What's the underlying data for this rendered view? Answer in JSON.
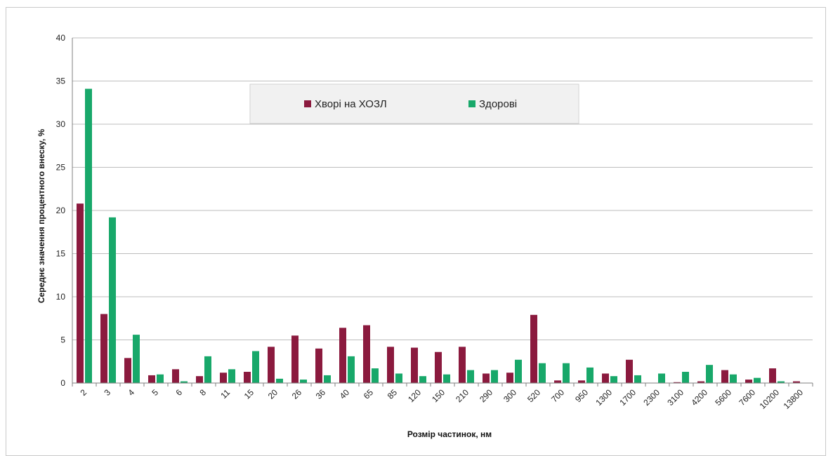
{
  "chart_data": {
    "type": "bar",
    "title": "",
    "xlabel": "Розмір частинок, нм",
    "ylabel": "Середнє значення процентного внеску, %",
    "ylim": [
      0,
      40
    ],
    "yticks": [
      0,
      5,
      10,
      15,
      20,
      25,
      30,
      35,
      40
    ],
    "grid": true,
    "legend_position": "top-center",
    "categories": [
      "2",
      "3",
      "4",
      "5",
      "6",
      "8",
      "11",
      "15",
      "20",
      "26",
      "36",
      "40",
      "65",
      "85",
      "120",
      "150",
      "210",
      "290",
      "300",
      "520",
      "700",
      "950",
      "1300",
      "1700",
      "2300",
      "3100",
      "4200",
      "5600",
      "7600",
      "10200",
      "13800"
    ],
    "series": [
      {
        "name": "Хворі на ХОЗЛ",
        "color": "#8b1a3e",
        "values": [
          20.8,
          8.0,
          2.9,
          0.9,
          1.6,
          0.8,
          1.2,
          1.3,
          4.2,
          5.5,
          4.0,
          6.4,
          6.7,
          4.2,
          4.1,
          3.6,
          4.2,
          1.1,
          1.2,
          7.9,
          0.3,
          0.3,
          1.1,
          2.7,
          0.0,
          0.1,
          0.2,
          1.5,
          0.4,
          1.7,
          0.2
        ]
      },
      {
        "name": "Здорові",
        "color": "#18a86a",
        "values": [
          34.1,
          19.2,
          5.6,
          1.0,
          0.2,
          3.1,
          1.6,
          3.7,
          0.5,
          0.4,
          0.9,
          3.1,
          1.7,
          1.1,
          0.8,
          1.0,
          1.5,
          1.5,
          2.7,
          2.3,
          2.3,
          1.8,
          0.8,
          0.9,
          1.1,
          1.3,
          2.1,
          1.0,
          0.6,
          0.2,
          0.0
        ]
      }
    ]
  }
}
